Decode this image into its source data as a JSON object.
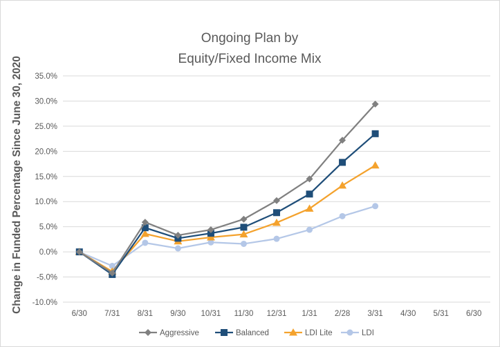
{
  "chart_data": {
    "type": "line",
    "title": [
      "Ongoing Plan by",
      "Equity/Fixed Income Mix"
    ],
    "xlabel": "",
    "ylabel": "Change in Funded Percentage Since June 30, 2020",
    "categories": [
      "6/30",
      "7/31",
      "8/31",
      "9/30",
      "10/31",
      "11/30",
      "12/31",
      "1/31",
      "2/28",
      "3/31",
      "4/30",
      "5/31",
      "6/30"
    ],
    "y_ticks": [
      "35.0%",
      "30.0%",
      "25.0%",
      "20.0%",
      "15.0%",
      "10.0%",
      "5.0%",
      "0.0%",
      "-5.0%",
      "-10.0%"
    ],
    "ylim": [
      -10,
      35
    ],
    "y_unit": "%",
    "grid": "horizontal",
    "legend_position": "bottom",
    "series": [
      {
        "name": "Aggressive",
        "color": "#808080",
        "marker": "diamond",
        "values": [
          0.0,
          -4.2,
          5.9,
          3.3,
          4.4,
          6.5,
          10.2,
          14.5,
          22.2,
          29.4,
          null,
          null,
          null
        ]
      },
      {
        "name": "Balanced",
        "color": "#1f4e79",
        "marker": "square",
        "values": [
          0.0,
          -4.5,
          4.8,
          2.7,
          3.7,
          4.9,
          7.8,
          11.5,
          17.8,
          23.5,
          null,
          null,
          null
        ]
      },
      {
        "name": "LDI Lite",
        "color": "#f4a22d",
        "marker": "triangle",
        "values": [
          0.0,
          -3.9,
          3.6,
          2.1,
          2.9,
          3.5,
          5.8,
          8.6,
          13.2,
          17.2,
          null,
          null,
          null
        ]
      },
      {
        "name": "LDI",
        "color": "#b4c7e7",
        "marker": "circle",
        "values": [
          0.0,
          -2.8,
          1.8,
          0.7,
          1.9,
          1.6,
          2.6,
          4.4,
          7.1,
          9.1,
          null,
          null,
          null
        ]
      }
    ]
  }
}
